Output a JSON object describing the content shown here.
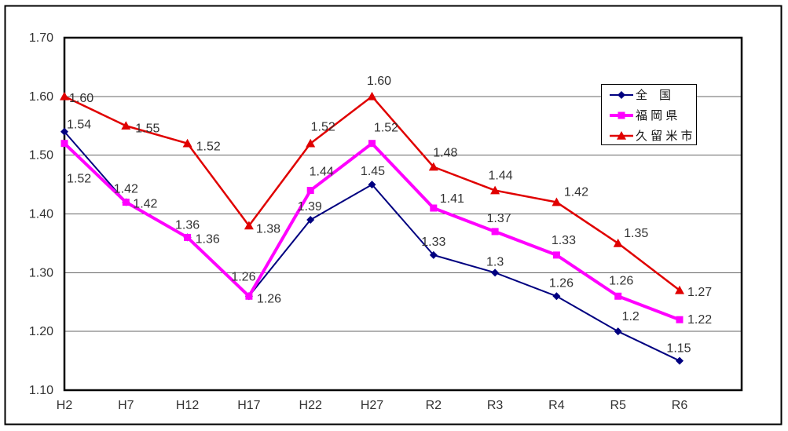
{
  "figure": {
    "background": "#FFFFFF",
    "border_color": "#000000"
  },
  "chart_data": {
    "type": "line",
    "title": "",
    "categories": [
      "H2",
      "H7",
      "H12",
      "H17",
      "H22",
      "H27",
      "R2",
      "R3",
      "R4",
      "R5",
      "R6"
    ],
    "series": [
      {
        "name": "全　国",
        "color": "#000080",
        "marker": "diamond",
        "values": [
          1.54,
          1.42,
          1.36,
          1.26,
          1.39,
          1.45,
          1.33,
          1.3,
          1.26,
          1.2,
          1.15
        ],
        "labels": [
          "1.54",
          "1.42",
          "1.36",
          "1.26",
          "1.39",
          "1.45",
          "1.33",
          "1.3",
          "1.26",
          "1.2",
          "1.15"
        ]
      },
      {
        "name": "福 岡 県",
        "color": "#FF00FF",
        "marker": "square",
        "values": [
          1.52,
          1.42,
          1.36,
          1.26,
          1.44,
          1.52,
          1.41,
          1.37,
          1.33,
          1.26,
          1.22
        ],
        "labels": [
          "1.52",
          "1.42",
          "1.36",
          "1.26",
          "1.44",
          "1.52",
          "1.41",
          "1.37",
          "1.33",
          "1.26",
          "1.22"
        ]
      },
      {
        "name": "久 留 米 市",
        "color": "#E00000",
        "marker": "triangle",
        "values": [
          1.6,
          1.55,
          1.52,
          1.38,
          1.52,
          1.6,
          1.48,
          1.44,
          1.42,
          1.35,
          1.27
        ],
        "labels": [
          "1.60",
          "1.55",
          "1.52",
          "1.38",
          "1.52",
          "1.60",
          "1.48",
          "1.44",
          "1.42",
          "1.35",
          "1.27"
        ]
      }
    ],
    "ylim": [
      1.1,
      1.7
    ],
    "ytick_step": 0.1,
    "ytick_labels": [
      "1.70",
      "1.60",
      "1.50",
      "1.40",
      "1.30",
      "1.20",
      "1.10"
    ],
    "grid": true,
    "legend_position": "inside-top-right",
    "axis_color": "#000000",
    "gridline_color": "#666666",
    "text_color": "#333333"
  }
}
